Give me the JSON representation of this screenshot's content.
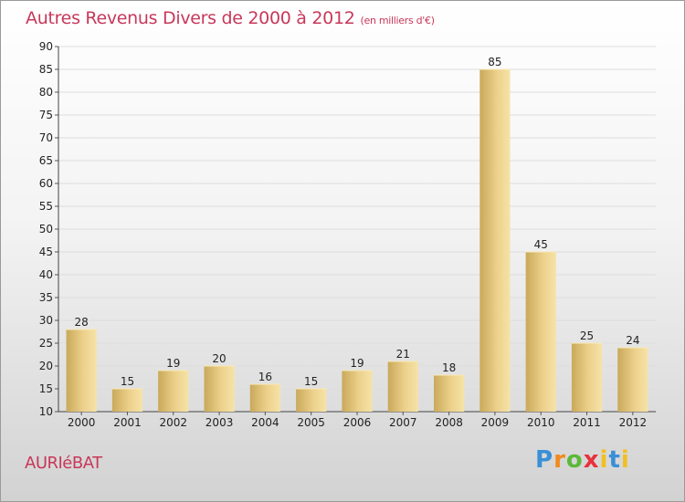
{
  "title": "Autres Revenus Divers de 2000 à 2012",
  "subtitle": "(en milliers d'€)",
  "place": "AURIéBAT",
  "logo_text": "Proxiti",
  "colors": {
    "title": "#c8385a",
    "bar_light": "#f3dc98",
    "bar_dark": "#c9a95a"
  },
  "chart_data": {
    "type": "bar",
    "categories": [
      "2000",
      "2001",
      "2002",
      "2003",
      "2004",
      "2005",
      "2006",
      "2007",
      "2008",
      "2009",
      "2010",
      "2011",
      "2012"
    ],
    "values": [
      28,
      15,
      19,
      20,
      16,
      15,
      19,
      21,
      18,
      85,
      45,
      25,
      24
    ],
    "ylim": [
      10,
      90
    ],
    "yticks": [
      10,
      15,
      20,
      25,
      30,
      35,
      40,
      45,
      50,
      55,
      60,
      65,
      70,
      75,
      80,
      85,
      90
    ],
    "grid": true,
    "xlabel": "",
    "ylabel": ""
  }
}
